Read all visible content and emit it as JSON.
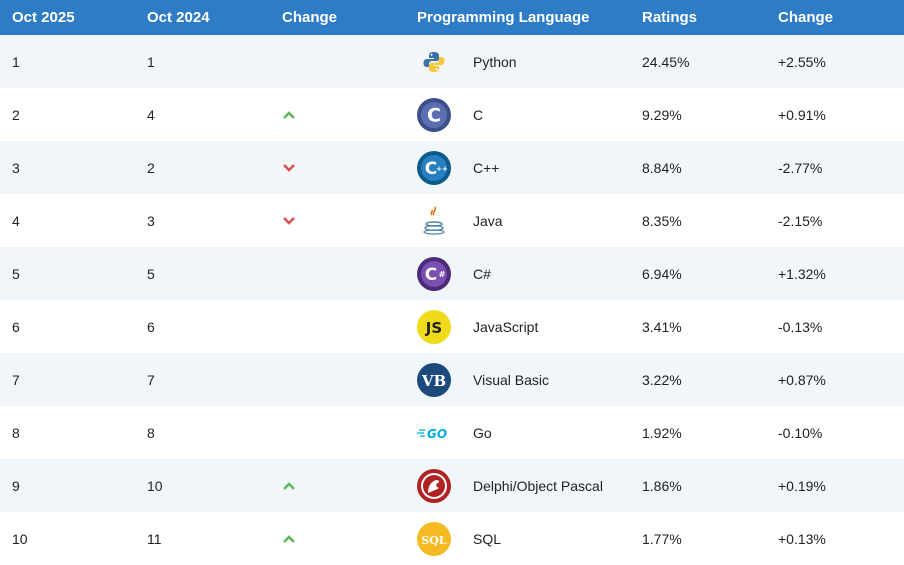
{
  "header": {
    "col_rank_now": "Oct 2025",
    "col_rank_prev": "Oct 2024",
    "col_change": "Change",
    "col_language": "Programming Language",
    "col_ratings": "Ratings",
    "col_rating_change": "Change"
  },
  "rows": [
    {
      "rank_now": "1",
      "rank_prev": "1",
      "trend": "none",
      "language": "Python",
      "rating": "24.45%",
      "change": "+2.55%",
      "icon": "python-icon"
    },
    {
      "rank_now": "2",
      "rank_prev": "4",
      "trend": "up",
      "language": "C",
      "rating": "9.29%",
      "change": "+0.91%",
      "icon": "c-icon"
    },
    {
      "rank_now": "3",
      "rank_prev": "2",
      "trend": "down",
      "language": "C++",
      "rating": "8.84%",
      "change": "-2.77%",
      "icon": "cpp-icon"
    },
    {
      "rank_now": "4",
      "rank_prev": "3",
      "trend": "down",
      "language": "Java",
      "rating": "8.35%",
      "change": "-2.15%",
      "icon": "java-icon"
    },
    {
      "rank_now": "5",
      "rank_prev": "5",
      "trend": "none",
      "language": "C#",
      "rating": "6.94%",
      "change": "+1.32%",
      "icon": "csharp-icon"
    },
    {
      "rank_now": "6",
      "rank_prev": "6",
      "trend": "none",
      "language": "JavaScript",
      "rating": "3.41%",
      "change": "-0.13%",
      "icon": "javascript-icon"
    },
    {
      "rank_now": "7",
      "rank_prev": "7",
      "trend": "none",
      "language": "Visual Basic",
      "rating": "3.22%",
      "change": "+0.87%",
      "icon": "visual-basic-icon"
    },
    {
      "rank_now": "8",
      "rank_prev": "8",
      "trend": "none",
      "language": "Go",
      "rating": "1.92%",
      "change": "-0.10%",
      "icon": "go-icon"
    },
    {
      "rank_now": "9",
      "rank_prev": "10",
      "trend": "up",
      "language": "Delphi/Object Pascal",
      "rating": "1.86%",
      "change": "+0.19%",
      "icon": "delphi-icon"
    },
    {
      "rank_now": "10",
      "rank_prev": "11",
      "trend": "up",
      "language": "SQL",
      "rating": "1.77%",
      "change": "+0.13%",
      "icon": "sql-icon"
    }
  ],
  "colors": {
    "header_bg": "#2e7cc5",
    "row_alt_bg": "#f1f6fb",
    "up_arrow": "#5cb85c",
    "down_arrow": "#d9534f"
  }
}
